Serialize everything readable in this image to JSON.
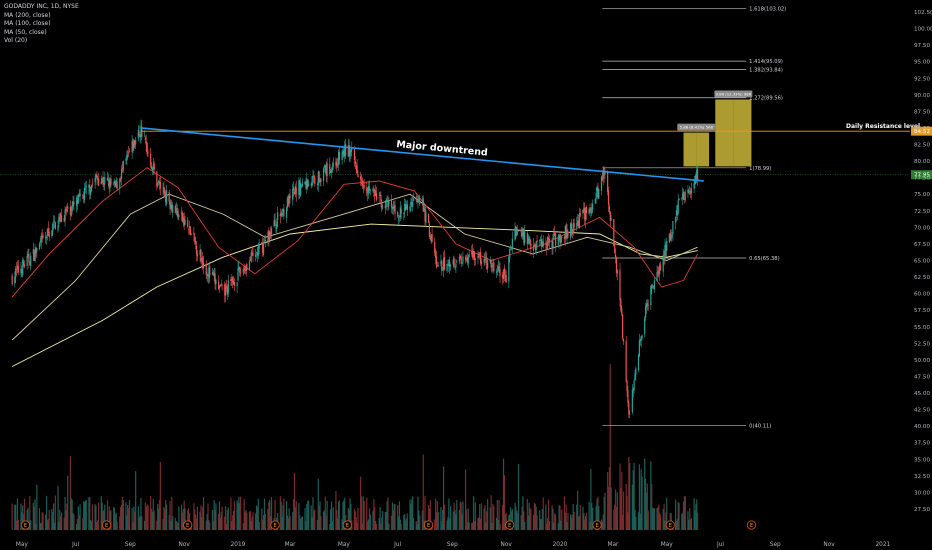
{
  "legend": {
    "symbol": "GODADDY INC, 1D, NYSE",
    "ma200": "MA (200, close)",
    "ma100": "MA (100, close)",
    "ma50": "MA (50, close)",
    "vol": "Vol (20)"
  },
  "colors": {
    "background": "#000000",
    "up": "#26a69a",
    "down": "#ef5350",
    "trendline": "#2196f3",
    "resistance": "#ff9800",
    "ma200": "#f5f2a0",
    "ma100": "#d8cfa0",
    "ma50": "#e53935",
    "fib": "#bfbfbf",
    "target_box": "#c9b63a",
    "last_price": "#2e7d32",
    "resistance_tag": "#e39b2c"
  },
  "chart_data": {
    "type": "candlestick",
    "symbol": "GODADDY INC",
    "interval": "1D",
    "exchange": "NYSE",
    "x_tick_labels": [
      "May",
      "Jul",
      "Sep",
      "Nov",
      "2019",
      "Mar",
      "May",
      "Jul",
      "Sep",
      "Nov",
      "2020",
      "Mar",
      "May",
      "Jul",
      "Sep",
      "Nov",
      "2021"
    ],
    "y_tick_labels": [
      "102.50",
      "100.00",
      "97.50",
      "95.00",
      "92.50",
      "90.00",
      "87.50",
      "85.00",
      "82.50",
      "80.00",
      "77.50",
      "75.00",
      "72.50",
      "70.00",
      "67.50",
      "65.00",
      "62.50",
      "60.00",
      "57.50",
      "55.00",
      "52.50",
      "50.00",
      "47.50",
      "45.00",
      "42.50",
      "40.00",
      "37.50",
      "35.00",
      "32.50",
      "30.00",
      "27.50"
    ],
    "ylim": [
      26.5,
      104.5
    ],
    "last_price": "77.95",
    "resistance_price": "84.52",
    "resistance_value": 84.52,
    "resistance_label": "Daily Resistance level",
    "trendline_label": "Major downtrend",
    "trendline": {
      "start": {
        "date": "2018-09-13",
        "price": 85.0
      },
      "end": {
        "date": "2020-06-12",
        "price": 77.0
      }
    },
    "fib_levels": [
      {
        "label": "0(40.11)",
        "value": 40.11
      },
      {
        "label": "0.65(65.38)",
        "value": 65.38
      },
      {
        "label": "1(78.99)",
        "value": 78.99
      },
      {
        "label": "1.272(89.56)",
        "value": 89.56
      },
      {
        "label": "1.382(93.84)",
        "value": 93.84
      },
      {
        "label": "1.414(95.09)",
        "value": 95.09
      },
      {
        "label": "1.618(103.02)",
        "value": 103.02
      }
    ],
    "target_boxes": [
      {
        "label": "5.88 (8.41%) 508",
        "low": 79.2,
        "high": 84.3
      },
      {
        "label": "9.86 (12.33%) 986",
        "low": 79.2,
        "high": 89.3
      }
    ],
    "price_series": [
      {
        "date": "2018-04-20",
        "price": 62.5
      },
      {
        "date": "2018-05-15",
        "price": 66.0
      },
      {
        "date": "2018-06-10",
        "price": 71.0
      },
      {
        "date": "2018-07-05",
        "price": 74.0
      },
      {
        "date": "2018-07-25",
        "price": 77.5
      },
      {
        "date": "2018-08-15",
        "price": 76.0
      },
      {
        "date": "2018-09-01",
        "price": 81.5
      },
      {
        "date": "2018-09-13",
        "price": 84.8
      },
      {
        "date": "2018-10-01",
        "price": 77.0
      },
      {
        "date": "2018-10-20",
        "price": 73.0
      },
      {
        "date": "2018-11-05",
        "price": 70.0
      },
      {
        "date": "2018-11-25",
        "price": 64.0
      },
      {
        "date": "2018-12-15",
        "price": 60.0
      },
      {
        "date": "2019-01-05",
        "price": 63.5
      },
      {
        "date": "2019-01-28",
        "price": 67.0
      },
      {
        "date": "2019-02-18",
        "price": 72.0
      },
      {
        "date": "2019-03-10",
        "price": 76.0
      },
      {
        "date": "2019-04-01",
        "price": 77.5
      },
      {
        "date": "2019-04-20",
        "price": 79.5
      },
      {
        "date": "2019-05-05",
        "price": 82.0
      },
      {
        "date": "2019-05-25",
        "price": 76.5
      },
      {
        "date": "2019-06-15",
        "price": 73.5
      },
      {
        "date": "2019-07-05",
        "price": 72.0
      },
      {
        "date": "2019-07-25",
        "price": 75.0
      },
      {
        "date": "2019-08-05",
        "price": 70.0
      },
      {
        "date": "2019-08-15",
        "price": 64.0
      },
      {
        "date": "2019-09-05",
        "price": 65.0
      },
      {
        "date": "2019-09-25",
        "price": 66.0
      },
      {
        "date": "2019-10-15",
        "price": 64.0
      },
      {
        "date": "2019-11-01",
        "price": 62.5
      },
      {
        "date": "2019-11-10",
        "price": 70.0
      },
      {
        "date": "2019-12-01",
        "price": 67.5
      },
      {
        "date": "2019-12-25",
        "price": 68.0
      },
      {
        "date": "2020-01-15",
        "price": 70.0
      },
      {
        "date": "2020-02-01",
        "price": 72.5
      },
      {
        "date": "2020-02-10",
        "price": 74.0
      },
      {
        "date": "2020-02-20",
        "price": 78.5
      },
      {
        "date": "2020-02-28",
        "price": 71.0
      },
      {
        "date": "2020-03-05",
        "price": 64.0
      },
      {
        "date": "2020-03-10",
        "price": 58.0
      },
      {
        "date": "2020-03-16",
        "price": 46.0
      },
      {
        "date": "2020-03-20",
        "price": 41.0
      },
      {
        "date": "2020-03-26",
        "price": 49.0
      },
      {
        "date": "2020-04-05",
        "price": 56.0
      },
      {
        "date": "2020-04-15",
        "price": 61.5
      },
      {
        "date": "2020-04-25",
        "price": 64.5
      },
      {
        "date": "2020-05-05",
        "price": 69.0
      },
      {
        "date": "2020-05-15",
        "price": 73.5
      },
      {
        "date": "2020-05-25",
        "price": 75.5
      },
      {
        "date": "2020-06-05",
        "price": 77.9
      }
    ],
    "ma200_series": [
      {
        "date": "2018-04-20",
        "price": 49.0
      },
      {
        "date": "2018-08-01",
        "price": 56.0
      },
      {
        "date": "2018-10-01",
        "price": 61.0
      },
      {
        "date": "2018-12-15",
        "price": 65.5
      },
      {
        "date": "2019-03-01",
        "price": 69.0
      },
      {
        "date": "2019-06-01",
        "price": 70.5
      },
      {
        "date": "2019-09-01",
        "price": 70.0
      },
      {
        "date": "2019-12-01",
        "price": 69.5
      },
      {
        "date": "2020-02-15",
        "price": 69.0
      },
      {
        "date": "2020-04-01",
        "price": 66.0
      },
      {
        "date": "2020-05-01",
        "price": 65.5
      },
      {
        "date": "2020-06-05",
        "price": 66.5
      }
    ],
    "ma100_series": [
      {
        "date": "2018-04-20",
        "price": 53.0
      },
      {
        "date": "2018-07-01",
        "price": 62.0
      },
      {
        "date": "2018-09-01",
        "price": 72.0
      },
      {
        "date": "2018-10-15",
        "price": 75.0
      },
      {
        "date": "2018-12-15",
        "price": 72.0
      },
      {
        "date": "2019-02-01",
        "price": 68.5
      },
      {
        "date": "2019-05-01",
        "price": 72.0
      },
      {
        "date": "2019-07-15",
        "price": 75.0
      },
      {
        "date": "2019-09-15",
        "price": 69.0
      },
      {
        "date": "2019-12-01",
        "price": 66.0
      },
      {
        "date": "2020-02-01",
        "price": 68.5
      },
      {
        "date": "2020-03-20",
        "price": 67.0
      },
      {
        "date": "2020-05-01",
        "price": 65.0
      },
      {
        "date": "2020-06-05",
        "price": 67.0
      }
    ],
    "ma50_series": [
      {
        "date": "2018-04-20",
        "price": 59.5
      },
      {
        "date": "2018-06-01",
        "price": 66.0
      },
      {
        "date": "2018-08-01",
        "price": 74.0
      },
      {
        "date": "2018-09-20",
        "price": 79.0
      },
      {
        "date": "2018-10-25",
        "price": 76.0
      },
      {
        "date": "2018-12-10",
        "price": 67.0
      },
      {
        "date": "2019-01-20",
        "price": 63.0
      },
      {
        "date": "2019-03-10",
        "price": 68.0
      },
      {
        "date": "2019-05-01",
        "price": 76.5
      },
      {
        "date": "2019-06-10",
        "price": 77.0
      },
      {
        "date": "2019-07-20",
        "price": 75.5
      },
      {
        "date": "2019-09-05",
        "price": 67.5
      },
      {
        "date": "2019-10-15",
        "price": 65.0
      },
      {
        "date": "2019-12-15",
        "price": 67.5
      },
      {
        "date": "2020-02-15",
        "price": 71.5
      },
      {
        "date": "2020-03-25",
        "price": 67.0
      },
      {
        "date": "2020-04-25",
        "price": 61.0
      },
      {
        "date": "2020-05-20",
        "price": 62.0
      },
      {
        "date": "2020-06-05",
        "price": 66.0
      }
    ],
    "earnings_markers": [
      "2018-05-05",
      "2018-08-05",
      "2018-11-05",
      "2019-02-12",
      "2019-05-05",
      "2019-08-05",
      "2019-11-05",
      "2020-02-12",
      "2020-05-05",
      "2020-08-05"
    ],
    "earnings_marker_label": "E"
  }
}
